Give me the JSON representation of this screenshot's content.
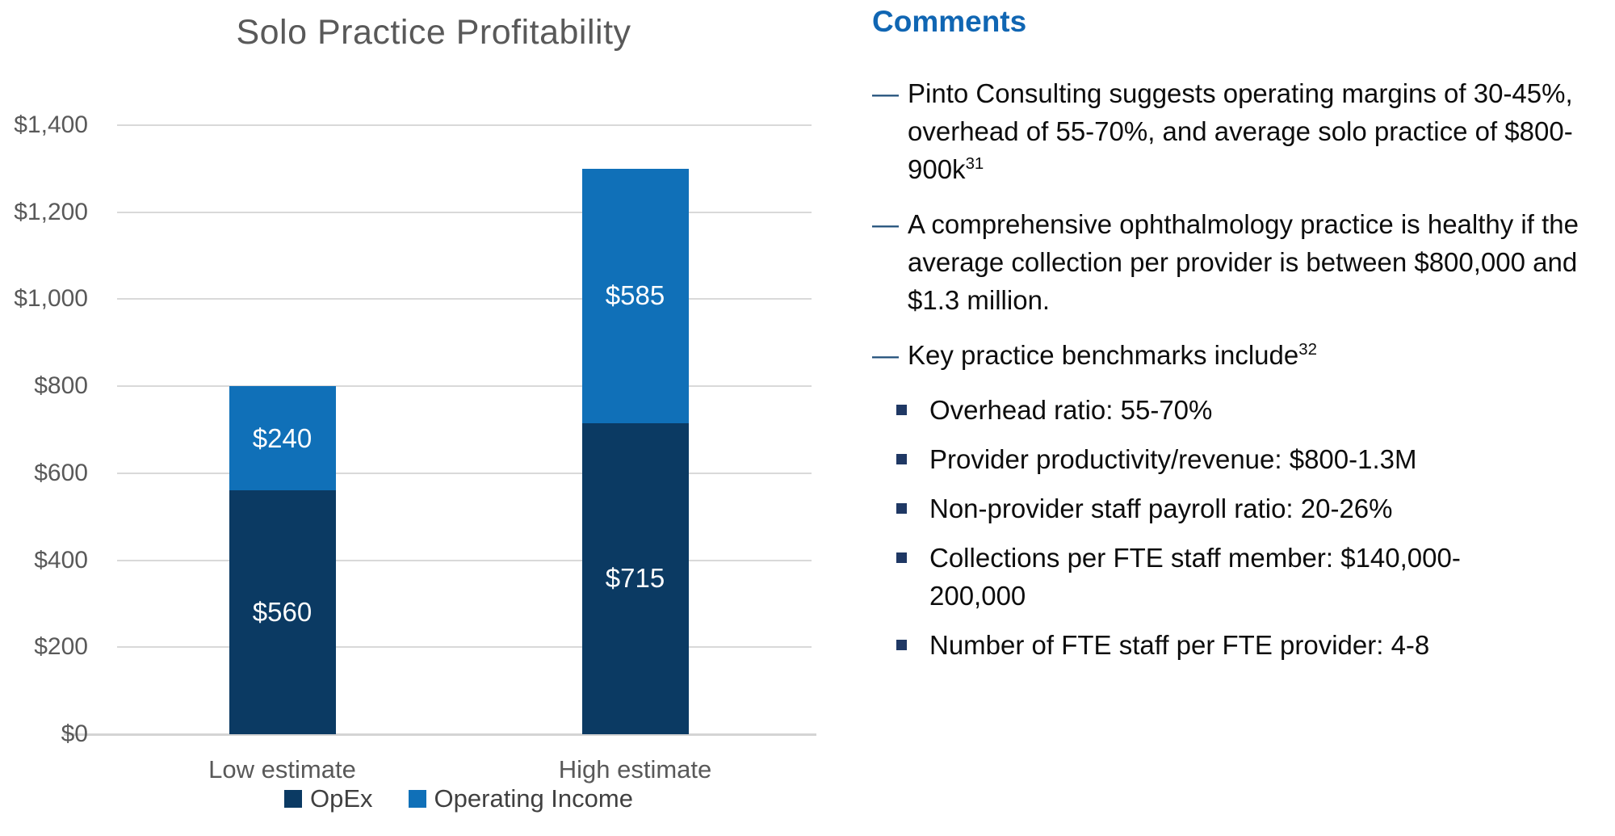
{
  "chart_data": {
    "type": "bar",
    "stacked": true,
    "title": "Solo Practice Profitability",
    "categories": [
      "Low estimate",
      "High estimate"
    ],
    "series": [
      {
        "name": "OpEx",
        "color": "#0B3A63",
        "values": [
          560,
          715
        ]
      },
      {
        "name": "Operating Income",
        "color": "#1070B8",
        "values": [
          240,
          585
        ]
      }
    ],
    "totals": [
      800,
      1300
    ],
    "value_prefix": "$",
    "xlabel": "",
    "ylabel": "",
    "ylim": [
      0,
      1400
    ],
    "grid": true,
    "legend_position": "bottom",
    "yticks": [
      {
        "value": 0,
        "label": "$0"
      },
      {
        "value": 200,
        "label": "$200"
      },
      {
        "value": 400,
        "label": "$400"
      },
      {
        "value": 600,
        "label": "$600"
      },
      {
        "value": 800,
        "label": "$800"
      },
      {
        "value": 1000,
        "label": "$1,000"
      },
      {
        "value": 1200,
        "label": "$1,200"
      },
      {
        "value": 1400,
        "label": "$1,400"
      }
    ]
  },
  "comments": {
    "title": "Comments",
    "bullets": [
      {
        "level": 1,
        "text": "Pinto Consulting suggests operating margins of 30-45%, overhead of 55-70%, and average solo practice of $800-900k",
        "sup": "31"
      },
      {
        "level": 1,
        "text": "A comprehensive ophthalmology practice is healthy if the average collection per provider is between $800,000 and $1.3 million."
      },
      {
        "level": 1,
        "text": "Key practice benchmarks include",
        "sup": "32"
      },
      {
        "level": 2,
        "text": "Overhead ratio: 55-70%"
      },
      {
        "level": 2,
        "text": "Provider productivity/revenue: $800-1.3M"
      },
      {
        "level": 2,
        "text": "Non-provider staff payroll ratio: 20-26%"
      },
      {
        "level": 2,
        "text": "Collections per FTE staff member: $140,000-200,000"
      },
      {
        "level": 2,
        "text": "Number of FTE staff per FTE provider: 4-8"
      }
    ]
  },
  "colors": {
    "opex_navy": "#0B3A63",
    "operating_income_blue": "#1070B8",
    "heading_blue": "#1066B3",
    "dash_bullet_navy": "#1F4E79",
    "square_bullet_navy": "#1F3864",
    "axis_text_gray": "#595959",
    "gridline_gray": "#D9D9D9"
  }
}
